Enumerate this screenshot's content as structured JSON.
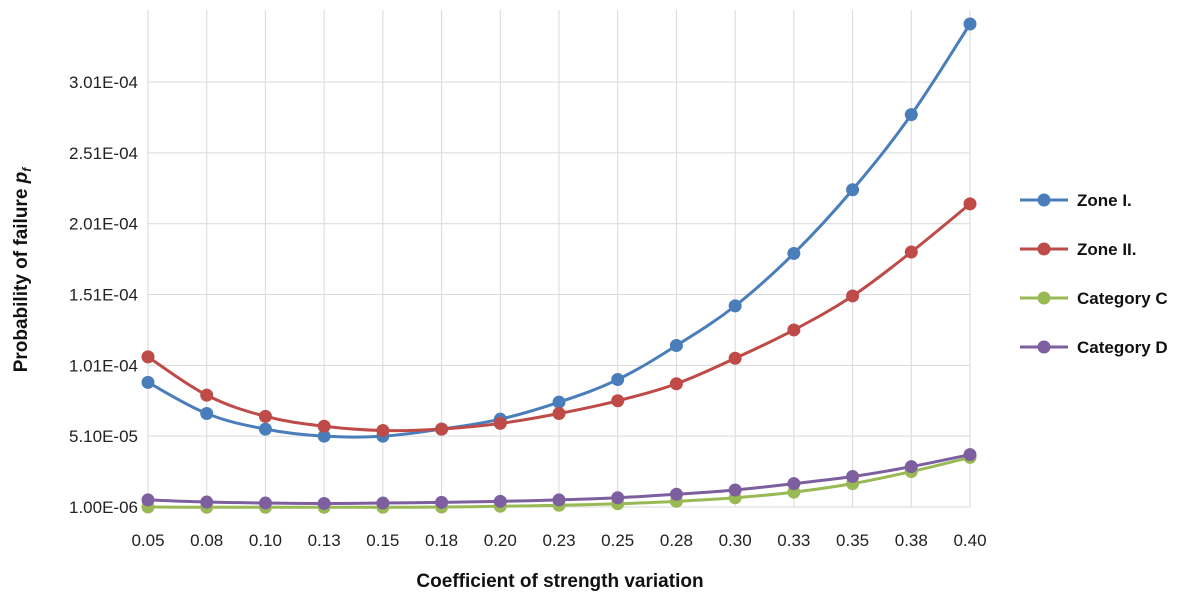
{
  "chart_data": {
    "type": "line",
    "title": "",
    "xlabel": "Coefficient of strength variation",
    "ylabel_prefix": "Probability of failure ",
    "ylabel_symbol": "p",
    "ylabel_subscript": "f",
    "categories": [
      "0.05",
      "0.08",
      "0.10",
      "0.13",
      "0.15",
      "0.18",
      "0.20",
      "0.23",
      "0.25",
      "0.28",
      "0.30",
      "0.33",
      "0.35",
      "0.38",
      "0.40"
    ],
    "ylim": [
      1e-06,
      0.000342
    ],
    "yticks": [
      1e-06,
      5.1e-05,
      0.000101,
      0.000151,
      0.000201,
      0.000251,
      0.000301
    ],
    "ytick_labels": [
      "1.00E-06",
      "5.10E-05",
      "1.01E-04",
      "1.51E-04",
      "2.01E-04",
      "2.51E-04",
      "3.01E-04"
    ],
    "grid": true,
    "legend_position": "right",
    "series": [
      {
        "name": "Zone I.",
        "color": "#4a7ebb",
        "values": [
          8.9e-05,
          6.7e-05,
          5.6e-05,
          5.1e-05,
          5.1e-05,
          5.6e-05,
          6.3e-05,
          7.5e-05,
          9.1e-05,
          0.000115,
          0.000143,
          0.00018,
          0.000225,
          0.000278,
          0.000342
        ]
      },
      {
        "name": "Zone II.",
        "color": "#be4b48",
        "values": [
          0.000107,
          8e-05,
          6.5e-05,
          5.8e-05,
          5.5e-05,
          5.6e-05,
          6e-05,
          6.7e-05,
          7.6e-05,
          8.8e-05,
          0.000106,
          0.000126,
          0.00015,
          0.000181,
          0.000215
        ]
      },
      {
        "name": "Category C",
        "color": "#98b954",
        "values": [
          1e-06,
          8e-07,
          8e-07,
          8e-07,
          8e-07,
          1e-06,
          1.5e-06,
          2.2e-06,
          3.3e-06,
          5e-06,
          7.5e-06,
          1.15e-05,
          1.75e-05,
          2.6e-05,
          3.6e-05
        ]
      },
      {
        "name": "Category D",
        "color": "#7d5fa0",
        "values": [
          6e-06,
          4.5e-06,
          3.8e-06,
          3.5e-06,
          3.8e-06,
          4.3e-06,
          5e-06,
          6e-06,
          7.5e-06,
          1e-05,
          1.3e-05,
          1.75e-05,
          2.25e-05,
          2.95e-05,
          3.8e-05
        ]
      }
    ]
  }
}
